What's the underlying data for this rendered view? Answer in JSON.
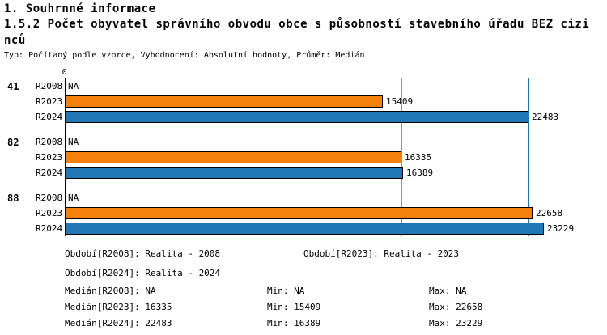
{
  "header": {
    "section_title": "1. Souhrnné informace",
    "chart_title_line1": "1.5.2 Počet obyvatel správního obvodu obce s působností stavebního úřadu BEZ cizi",
    "chart_title_line2": "nců",
    "meta_line": "Typ: Počítaný podle vzorce, Vyhodnocení: Absolutní hodnoty, Průměr: Medián"
  },
  "chart_data": {
    "type": "bar",
    "orientation": "horizontal",
    "title": "1.5.2 Počet obyvatel správního obvodu obce s působností stavebního úřadu BEZ cizinců",
    "axis_zero_label": "0",
    "xmax": 25500,
    "series_order": [
      "R2008",
      "R2023",
      "R2024"
    ],
    "colors": {
      "R2023": "#F5810C",
      "R2024": "#1F77B4"
    },
    "groups": [
      {
        "label": "41",
        "rows": [
          {
            "series": "R2008",
            "value": null,
            "display": "NA"
          },
          {
            "series": "R2023",
            "value": 15409,
            "display": "15409"
          },
          {
            "series": "R2024",
            "value": 22483,
            "display": "22483"
          }
        ]
      },
      {
        "label": "82",
        "rows": [
          {
            "series": "R2008",
            "value": null,
            "display": "NA"
          },
          {
            "series": "R2023",
            "value": 16335,
            "display": "16335"
          },
          {
            "series": "R2024",
            "value": 16389,
            "display": "16389"
          }
        ]
      },
      {
        "label": "88",
        "rows": [
          {
            "series": "R2008",
            "value": null,
            "display": "NA"
          },
          {
            "series": "R2023",
            "value": 22658,
            "display": "22658"
          },
          {
            "series": "R2024",
            "value": 23229,
            "display": "23229"
          }
        ]
      }
    ],
    "reference_lines": [
      {
        "label": "Medián R2023",
        "value": 16335,
        "color": "#F5810C"
      },
      {
        "label": "Medián R2024",
        "value": 22483,
        "color": "#1F77B4"
      }
    ]
  },
  "legend": {
    "obdobi_r2008": "Období[R2008]: Realita - 2008",
    "obdobi_r2023": "Období[R2023]: Realita - 2023",
    "obdobi_r2024": "Období[R2024]: Realita - 2024",
    "median_r2008": "Medián[R2008]: NA",
    "min_r2008": "Min: NA",
    "max_r2008": "Max: NA",
    "median_r2023": "Medián[R2023]: 16335",
    "min_r2023": "Min: 15409",
    "max_r2023": "Max: 22658",
    "median_r2024": "Medián[R2024]: 22483",
    "min_r2024": "Min: 16389",
    "max_r2024": "Max: 23229"
  }
}
